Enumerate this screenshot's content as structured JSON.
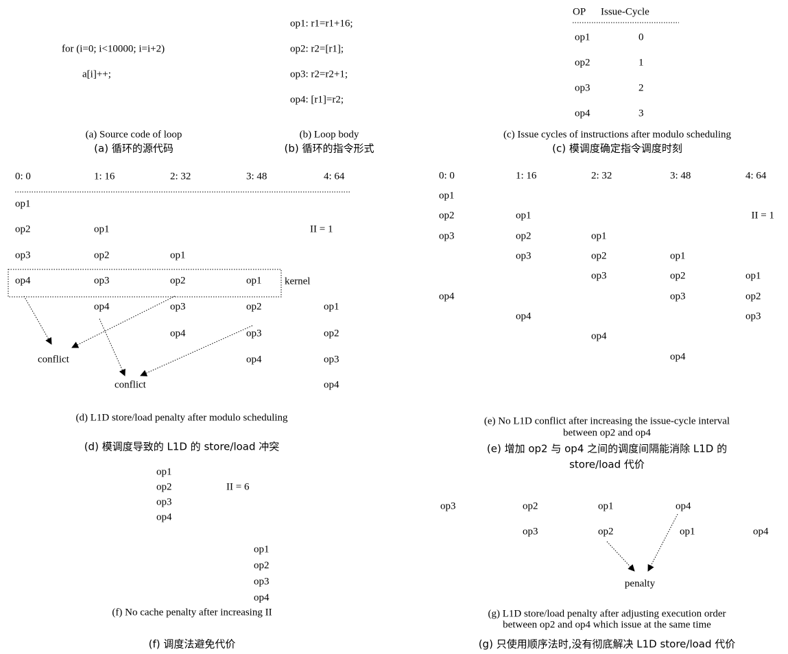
{
  "panel_a": {
    "code": [
      "for (i=0; i<10000; i=i+2)",
      "a[i]++;"
    ],
    "caption_en": [
      "(a) Source code of loop"
    ],
    "caption_zh": [
      "(a) 循环的源代码"
    ]
  },
  "panel_b": {
    "code": [
      "op1: r1=r1+16;",
      "op2: r2=[r1];",
      "op3: r2=r2+1;",
      "op4: [r1]=r2;"
    ],
    "caption_en": [
      "(b) Loop body"
    ],
    "caption_zh": [
      "(b) 循环的指令形式"
    ]
  },
  "panel_c": {
    "header": [
      "OP",
      "Issue-Cycle"
    ],
    "rows": [
      [
        "op1",
        "0"
      ],
      [
        "op2",
        "1"
      ],
      [
        "op3",
        "2"
      ],
      [
        "op4",
        "3"
      ]
    ],
    "caption_en": [
      "(c) Issue cycles of instructions after modulo scheduling"
    ],
    "caption_zh": [
      "(c) 模调度确定指令调度时刻"
    ]
  },
  "panel_d": {
    "header": [
      "0: 0",
      "1: 16",
      "2: 32",
      "3: 48",
      "4: 64"
    ],
    "rows": [
      [
        "op1",
        null,
        null,
        null,
        null
      ],
      [
        "op2",
        "op1",
        null,
        null,
        null
      ],
      [
        "op3",
        "op2",
        "op1",
        null,
        null
      ],
      [
        "op4",
        "op3",
        "op2",
        "op1",
        null
      ],
      [
        null,
        "op4",
        "op3",
        "op2",
        "op1"
      ],
      [
        null,
        null,
        "op4",
        "op3",
        "op2"
      ],
      [
        null,
        null,
        null,
        "op4",
        "op3"
      ],
      [
        null,
        null,
        null,
        null,
        "op4"
      ]
    ],
    "ii": "II = 1",
    "kernel": "kernel",
    "conflicts": [
      "conflict",
      "conflict"
    ],
    "caption_en": [
      "(d) L1D store/load penalty after modulo scheduling"
    ],
    "caption_zh": [
      "(d) 模调度导致的 L1D 的 store/load 冲突"
    ]
  },
  "panel_e": {
    "header": [
      "0: 0",
      "1: 16",
      "2: 32",
      "3: 48",
      "4: 64"
    ],
    "rows": [
      [
        "op1",
        null,
        null,
        null,
        null
      ],
      [
        "op2",
        "op1",
        null,
        null,
        null
      ],
      [
        "op3",
        "op2",
        "op1",
        null,
        null
      ],
      [
        null,
        "op3",
        "op2",
        "op1",
        null
      ],
      [
        null,
        null,
        "op3",
        "op2",
        "op1"
      ],
      [
        "op4",
        null,
        null,
        "op3",
        "op2"
      ],
      [
        null,
        "op4",
        null,
        null,
        "op3"
      ],
      [
        null,
        null,
        "op4",
        null,
        null
      ],
      [
        null,
        null,
        null,
        "op4",
        null
      ]
    ],
    "ii": "II = 1",
    "caption_en": [
      "(e) No L1D conflict after increasing the issue-cycle interval",
      "between op2 and op4"
    ],
    "caption_zh": [
      "(e) 增加 op2 与 op4 之间的调度间隔能消除 L1D 的",
      "store/load 代价"
    ]
  },
  "panel_f": {
    "block1": [
      "op1",
      "op2",
      "op3",
      "op4"
    ],
    "block2": [
      "op1",
      "op2",
      "op3",
      "op4"
    ],
    "ii": "II = 6",
    "caption_en": [
      "(f) No cache penalty after increasing II"
    ],
    "caption_zh": [
      "(f) 调度法避免代价"
    ]
  },
  "panel_g": {
    "rows": [
      [
        "op3",
        "op2",
        "op1",
        "op4"
      ],
      [
        "op3",
        "op2",
        "op1",
        "op4"
      ]
    ],
    "penalty": "penalty",
    "caption_en": [
      "(g) L1D store/load penalty after adjusting execution order",
      "between op2 and op4 which issue at the same time"
    ],
    "caption_zh": [
      "(g) 只使用顺序法时,没有彻底解决 L1D store/load 代价"
    ]
  }
}
